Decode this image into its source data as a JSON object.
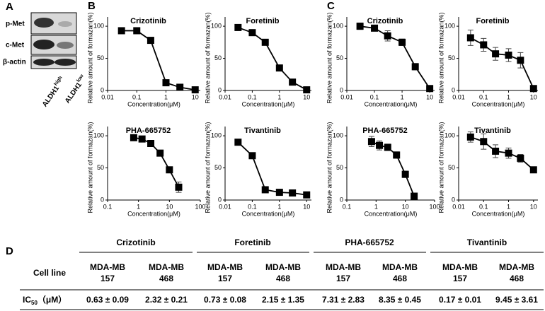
{
  "panel_labels": [
    "A",
    "B",
    "C",
    "D"
  ],
  "blot": {
    "rows": [
      "p-Met",
      "c-Met",
      "β-actin"
    ],
    "columns": [
      {
        "main": "ALDH1",
        "sup": "high"
      },
      {
        "main": "ALDH1",
        "sup": "low"
      }
    ]
  },
  "chart_data": [
    {
      "type": "line",
      "title": "Crizotinib",
      "x_label": "Concentration(μM)",
      "y_label": "Relative amount of formazan(%)",
      "log_x": true,
      "x": [
        0.03,
        0.1,
        0.3,
        1,
        3,
        10
      ],
      "xlim": [
        0.01,
        15
      ],
      "xticks": [
        0.01,
        0.1,
        1,
        10
      ],
      "ylim": [
        0,
        110
      ],
      "yticks": [
        0,
        50,
        100
      ],
      "series": [
        {
          "color": "#000000",
          "values": [
            93,
            93,
            78,
            12,
            5,
            1
          ]
        }
      ]
    },
    {
      "type": "line",
      "title": "Foretinib",
      "x_label": "Concentration(μM)",
      "y_label": "Relative amount of formazan(%)",
      "log_x": true,
      "x": [
        0.03,
        0.1,
        0.3,
        1,
        3,
        10
      ],
      "xlim": [
        0.01,
        15
      ],
      "xticks": [
        0.01,
        0.1,
        1,
        10
      ],
      "ylim": [
        0,
        110
      ],
      "yticks": [
        0,
        50,
        100
      ],
      "series": [
        {
          "color": "#000000",
          "values": [
            98,
            90,
            75,
            35,
            13,
            1
          ]
        }
      ]
    },
    {
      "type": "line",
      "title": "PHA-665752",
      "x_label": "Concentration(μM)",
      "y_label": "Relative amount of formazan(%)",
      "log_x": true,
      "x": [
        0.7,
        1.3,
        2.5,
        5,
        10,
        20
      ],
      "xlim": [
        0.1,
        100
      ],
      "xticks": [
        0.1,
        1,
        10,
        100
      ],
      "ylim": [
        0,
        110
      ],
      "yticks": [
        0,
        50,
        100
      ],
      "series": [
        {
          "color": "#000000",
          "values": [
            97,
            95,
            88,
            73,
            47,
            20
          ],
          "errors": [
            2,
            2,
            3,
            4,
            4,
            8
          ]
        }
      ]
    },
    {
      "type": "line",
      "title": "Tivantinib",
      "x_label": "Concentration(μM)",
      "y_label": "Relative amount of formazan(%)",
      "log_x": true,
      "x": [
        0.03,
        0.1,
        0.3,
        1,
        3,
        10
      ],
      "xlim": [
        0.01,
        15
      ],
      "xticks": [
        0.01,
        0.1,
        1,
        10
      ],
      "ylim": [
        0,
        110
      ],
      "yticks": [
        0,
        50,
        100
      ],
      "series": [
        {
          "color": "#000000",
          "values": [
            90,
            69,
            16,
            12,
            11,
            8
          ]
        }
      ]
    },
    {
      "type": "line",
      "title": "Crizotinib",
      "x_label": "Concentration(μM)",
      "y_label": "Relative amount of formazan(%)",
      "log_x": true,
      "x": [
        0.03,
        0.1,
        0.3,
        1,
        3,
        10
      ],
      "xlim": [
        0.01,
        15
      ],
      "xticks": [
        0.01,
        0.1,
        1,
        10
      ],
      "ylim": [
        0,
        110
      ],
      "yticks": [
        0,
        50,
        100
      ],
      "series": [
        {
          "color": "#000000",
          "values": [
            100,
            97,
            85,
            75,
            37,
            3
          ],
          "errors": [
            5,
            3,
            8,
            5,
            5,
            2
          ]
        }
      ]
    },
    {
      "type": "line",
      "title": "Foretinib",
      "x_label": "Concentration(μM)",
      "y_label": "Relative amount of formazan(%)",
      "log_x": true,
      "x": [
        0.03,
        0.1,
        0.3,
        1,
        3,
        10
      ],
      "xlim": [
        0.01,
        15
      ],
      "xticks": [
        0.01,
        0.1,
        1,
        10
      ],
      "ylim": [
        0,
        110
      ],
      "yticks": [
        0,
        50,
        100
      ],
      "series": [
        {
          "color": "#000000",
          "values": [
            82,
            71,
            57,
            55,
            47,
            3
          ],
          "errors": [
            12,
            10,
            10,
            10,
            12,
            3
          ]
        }
      ]
    },
    {
      "type": "line",
      "title": "PHA-665752",
      "x_label": "Concentration(μM)",
      "y_label": "Relative amount of formazan(%)",
      "log_x": true,
      "x": [
        0.7,
        1.3,
        2.5,
        5,
        10,
        20
      ],
      "xlim": [
        0.1,
        100
      ],
      "xticks": [
        0.1,
        1,
        10,
        100
      ],
      "ylim": [
        0,
        110
      ],
      "yticks": [
        0,
        50,
        100
      ],
      "series": [
        {
          "color": "#000000",
          "values": [
            91,
            85,
            82,
            70,
            40,
            6
          ],
          "errors": [
            8,
            7,
            5,
            5,
            5,
            3
          ]
        }
      ]
    },
    {
      "type": "line",
      "title": "Tivantinib",
      "x_label": "Concentration(μM)",
      "y_label": "Relative amount of formazan(%)",
      "log_x": true,
      "x": [
        0.03,
        0.1,
        0.3,
        1,
        3,
        10
      ],
      "xlim": [
        0.01,
        15
      ],
      "xticks": [
        0.01,
        0.1,
        1,
        10
      ],
      "ylim": [
        0,
        110
      ],
      "yticks": [
        0,
        50,
        100
      ],
      "series": [
        {
          "color": "#000000",
          "values": [
            98,
            91,
            76,
            73,
            65,
            47
          ],
          "errors": [
            8,
            12,
            10,
            8,
            6,
            3
          ]
        }
      ]
    }
  ],
  "table": {
    "row_header": "Cell line",
    "drugs": [
      "Crizotinib",
      "Foretinib",
      "PHA-665752",
      "Tivantinib"
    ],
    "cell_lines": [
      [
        "MDA-MB",
        "157"
      ],
      [
        "MDA-MB",
        "468"
      ],
      [
        "MDA-MB",
        "157"
      ],
      [
        "MDA-MB",
        "468"
      ],
      [
        "MDA-MB",
        "157"
      ],
      [
        "MDA-MB",
        "468"
      ],
      [
        "MDA-MB",
        "157"
      ],
      [
        "MDA-MB",
        "468"
      ]
    ],
    "ic50_label": {
      "main": "IC",
      "sub": "50",
      "unit": "（μM）"
    },
    "ic50": [
      "0.63 ± 0.09",
      "2.32 ± 0.21",
      "0.73 ± 0.08",
      "2.15 ± 1.35",
      "7.31 ± 2.83",
      "8.35 ± 0.45",
      "0.17 ± 0.01",
      "9.45 ± 3.61"
    ]
  }
}
